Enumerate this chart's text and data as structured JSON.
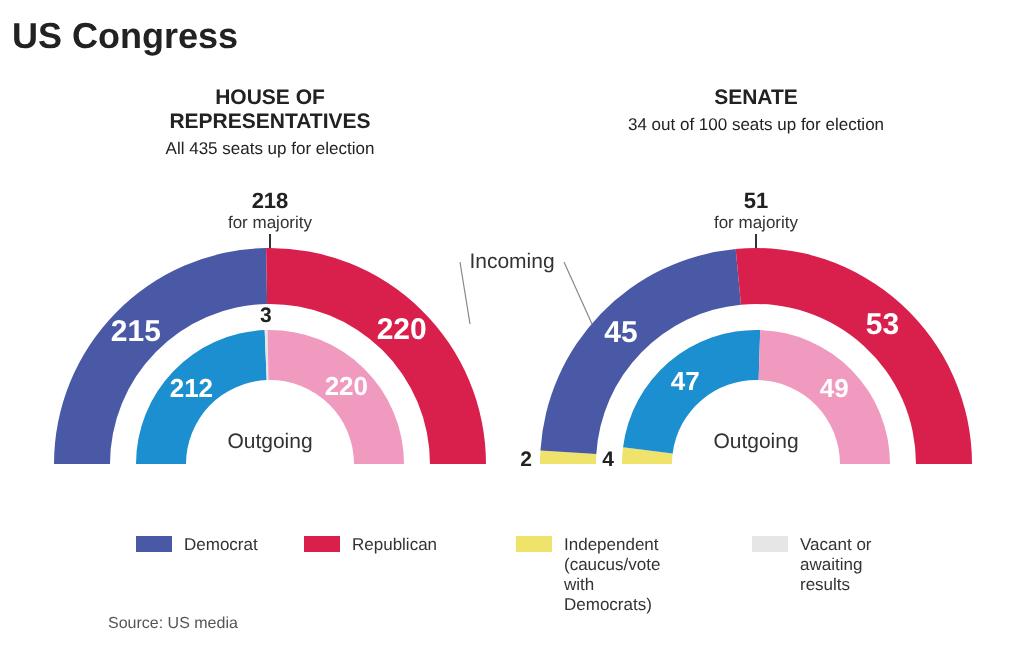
{
  "chart_data": [
    {
      "type": "donut",
      "title": "HOUSE OF REPRESENTATIVES",
      "subtitle": "All 435 seats up for election",
      "annotations": [
        "218",
        "for majority",
        "US Congress",
        "Source: US media"
      ],
      "categories": [
        "Democrat",
        "Republican",
        "Independent (caucus/vote with Democrats)",
        "Vacant or awaiting results"
      ],
      "series": [
        {
          "name": "Incoming",
          "colors": [
            "#4a59a6",
            "#d9204c",
            "#efe36c",
            "#e6e6e6"
          ],
          "values": [
            215,
            220,
            0,
            0
          ],
          "value_labels": [
            "215",
            "220",
            null,
            null
          ]
        },
        {
          "name": "Outgoing",
          "colors": [
            "#1b8fd0",
            "#f09ac0",
            "#efe36c",
            "#e6e6e6"
          ],
          "values": [
            212,
            220,
            0,
            3
          ],
          "value_labels": [
            "212",
            "220",
            null,
            "3"
          ]
        }
      ],
      "legend": "bottom"
    },
    {
      "type": "donut",
      "title": "SENATE",
      "subtitle": "34 out of 100 seats up for election",
      "annotations": [
        "51",
        "for majority"
      ],
      "categories": [
        null,
        null,
        null,
        null
      ],
      "series": [
        {
          "colors": [
            "#4a59a6",
            "#d9204c",
            "#efe36c",
            "#e6e6e6"
          ],
          "values": [
            45,
            53,
            2,
            0
          ],
          "value_labels": [
            "45",
            "53",
            "2",
            null
          ]
        },
        {
          "name": "Outgoing",
          "colors": [
            "#1b8fd0",
            "#f09ac0",
            "#efe36c",
            "#e6e6e6"
          ],
          "values": [
            47,
            49,
            4,
            0
          ],
          "value_labels": [
            "47",
            "49",
            "4",
            null
          ]
        }
      ],
      "legend": false
    }
  ]
}
